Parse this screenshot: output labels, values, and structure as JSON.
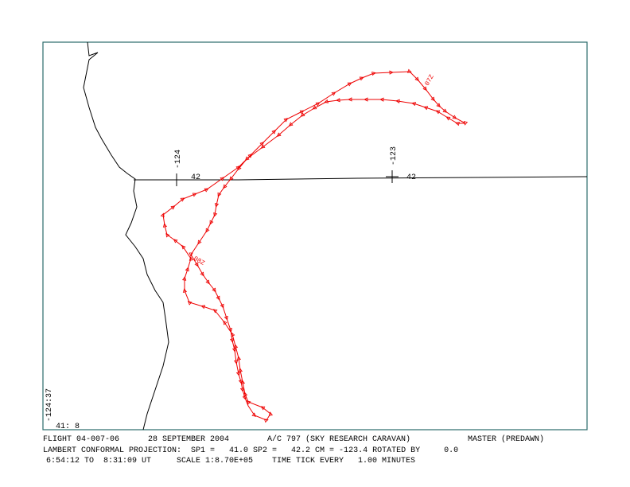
{
  "map": {
    "grid_labels": {
      "lon_west": "-124",
      "lat_west": "42",
      "lon_east": "-123",
      "lat_east": "42"
    },
    "corner_labels": {
      "lon": "-124:37",
      "lat": "41: 8"
    },
    "time_labels": [
      "07Z",
      "08Z"
    ]
  },
  "footer": {
    "line1": [
      "FLIGHT 04-007-06",
      "28 SEPTEMBER 2004",
      "A/C 797 (SKY RESEARCH CARAVAN)",
      "MASTER (PREDAWN)"
    ],
    "line2": "LAMBERT CONFORMAL PROJECTION:  SP1 =   41.0 SP2 =   42.2 CM = -123.4 ROTATED BY     0.0",
    "line3": [
      "6:54:12 TO  8:31:09 UT",
      "SCALE 1:8.70E+05",
      "TIME TICK EVERY   1.00 MINUTES"
    ]
  }
}
